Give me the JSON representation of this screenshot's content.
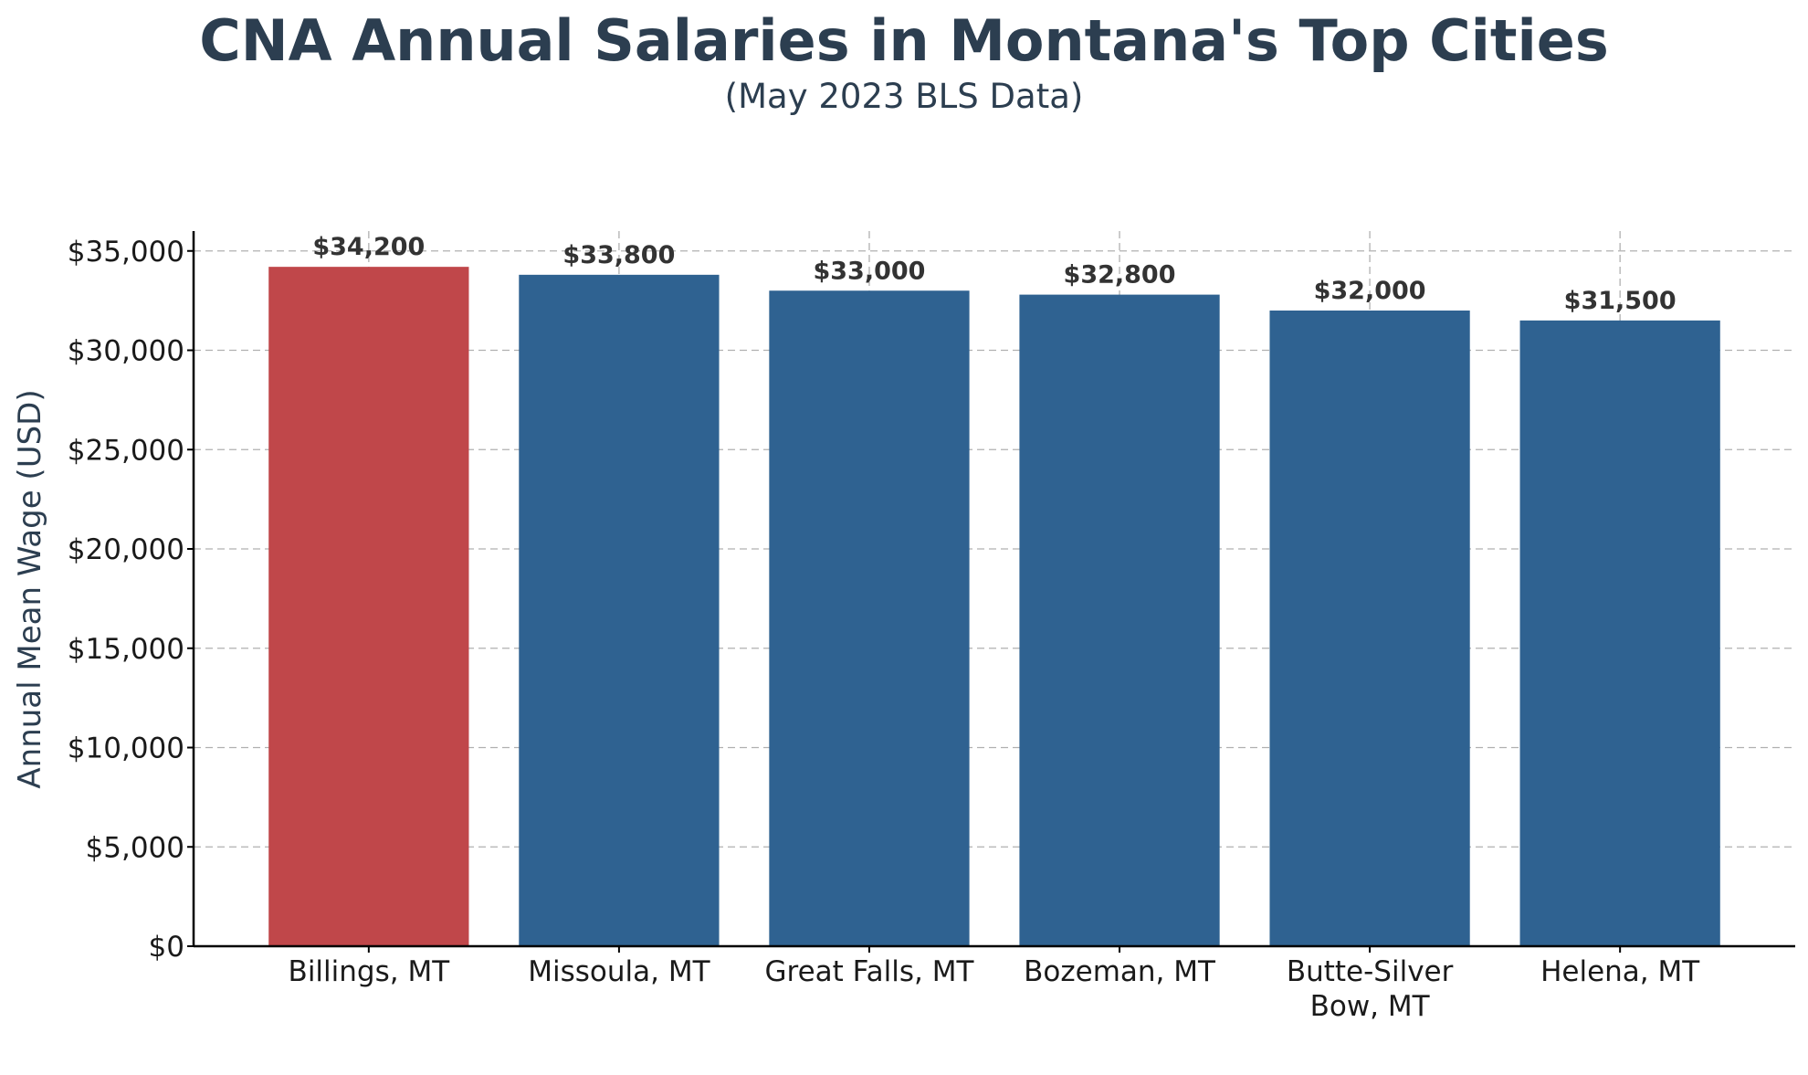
{
  "chart_data": {
    "type": "bar",
    "title": "CNA Annual Salaries in Montana's Top Cities",
    "subtitle": "(May 2023 BLS Data)",
    "xlabel": "",
    "ylabel": "Annual Mean Wage (USD)",
    "categories": [
      [
        "Billings, MT"
      ],
      [
        "Missoula, MT"
      ],
      [
        "Great Falls, MT"
      ],
      [
        "Bozeman, MT"
      ],
      [
        "Butte-Silver",
        "Bow, MT"
      ],
      [
        "Helena, MT"
      ]
    ],
    "values": [
      34200,
      33800,
      33000,
      32800,
      32000,
      31500
    ],
    "value_labels": [
      "$34,200",
      "$33,800",
      "$33,000",
      "$32,800",
      "$32,000",
      "$31,500"
    ],
    "bar_colors": [
      "#c0474a",
      "#2f6291",
      "#2f6291",
      "#2f6291",
      "#2f6291",
      "#2f6291"
    ],
    "ylim": [
      0,
      36000
    ],
    "yticks": [
      0,
      5000,
      10000,
      15000,
      20000,
      25000,
      30000,
      35000
    ],
    "ytick_labels": [
      "$0",
      "$5,000",
      "$10,000",
      "$15,000",
      "$20,000",
      "$25,000",
      "$30,000",
      "$35,000"
    ],
    "grid": true
  }
}
